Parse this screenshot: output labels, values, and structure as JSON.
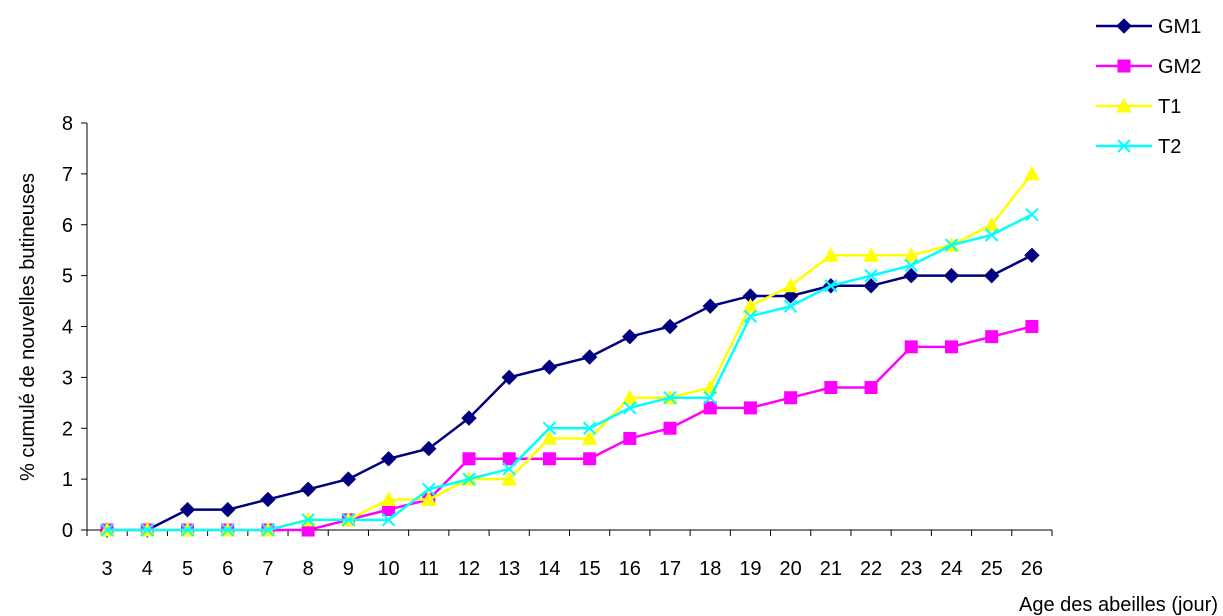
{
  "chart_data": {
    "type": "line",
    "title": "",
    "xlabel": "Age des abeilles (jour)",
    "ylabel": "% cumulé de nouvelles butineuses",
    "ylim": [
      0,
      8
    ],
    "yticks": [
      0,
      1,
      2,
      3,
      4,
      5,
      6,
      7,
      8
    ],
    "grid": false,
    "legend_position": "top-right",
    "x": [
      3,
      4,
      5,
      6,
      7,
      8,
      9,
      10,
      11,
      12,
      13,
      14,
      15,
      16,
      17,
      18,
      19,
      20,
      21,
      22,
      23,
      24,
      25,
      26
    ],
    "series": [
      {
        "name": "GM1",
        "color": "#000080",
        "marker": "diamond",
        "values": [
          0,
          0,
          0.4,
          0.4,
          0.6,
          0.8,
          1.0,
          1.4,
          1.6,
          2.2,
          3.0,
          3.2,
          3.4,
          3.8,
          4.0,
          4.4,
          4.6,
          4.6,
          4.8,
          4.8,
          5.0,
          5.0,
          5.0,
          5.4
        ]
      },
      {
        "name": "GM2",
        "color": "#FF00FF",
        "marker": "square",
        "values": [
          0,
          0,
          0,
          0,
          0,
          0,
          0.2,
          0.4,
          0.6,
          1.4,
          1.4,
          1.4,
          1.4,
          1.8,
          2.0,
          2.4,
          2.4,
          2.6,
          2.8,
          2.8,
          3.6,
          3.6,
          3.8,
          4.0
        ]
      },
      {
        "name": "T1",
        "color": "#FFFF00",
        "marker": "triangle",
        "values": [
          0,
          0,
          0,
          0,
          0,
          0.2,
          0.2,
          0.6,
          0.6,
          1.0,
          1.0,
          1.8,
          1.8,
          2.6,
          2.6,
          2.8,
          4.4,
          4.8,
          5.4,
          5.4,
          5.4,
          5.6,
          6.0,
          7.0
        ]
      },
      {
        "name": "T2",
        "color": "#00FFFF",
        "marker": "x",
        "values": [
          0,
          0,
          0,
          0,
          0,
          0.2,
          0.2,
          0.2,
          0.8,
          1.0,
          1.2,
          2.0,
          2.0,
          2.4,
          2.6,
          2.6,
          4.2,
          4.4,
          4.8,
          5.0,
          5.2,
          5.6,
          5.8,
          6.2
        ]
      }
    ]
  }
}
